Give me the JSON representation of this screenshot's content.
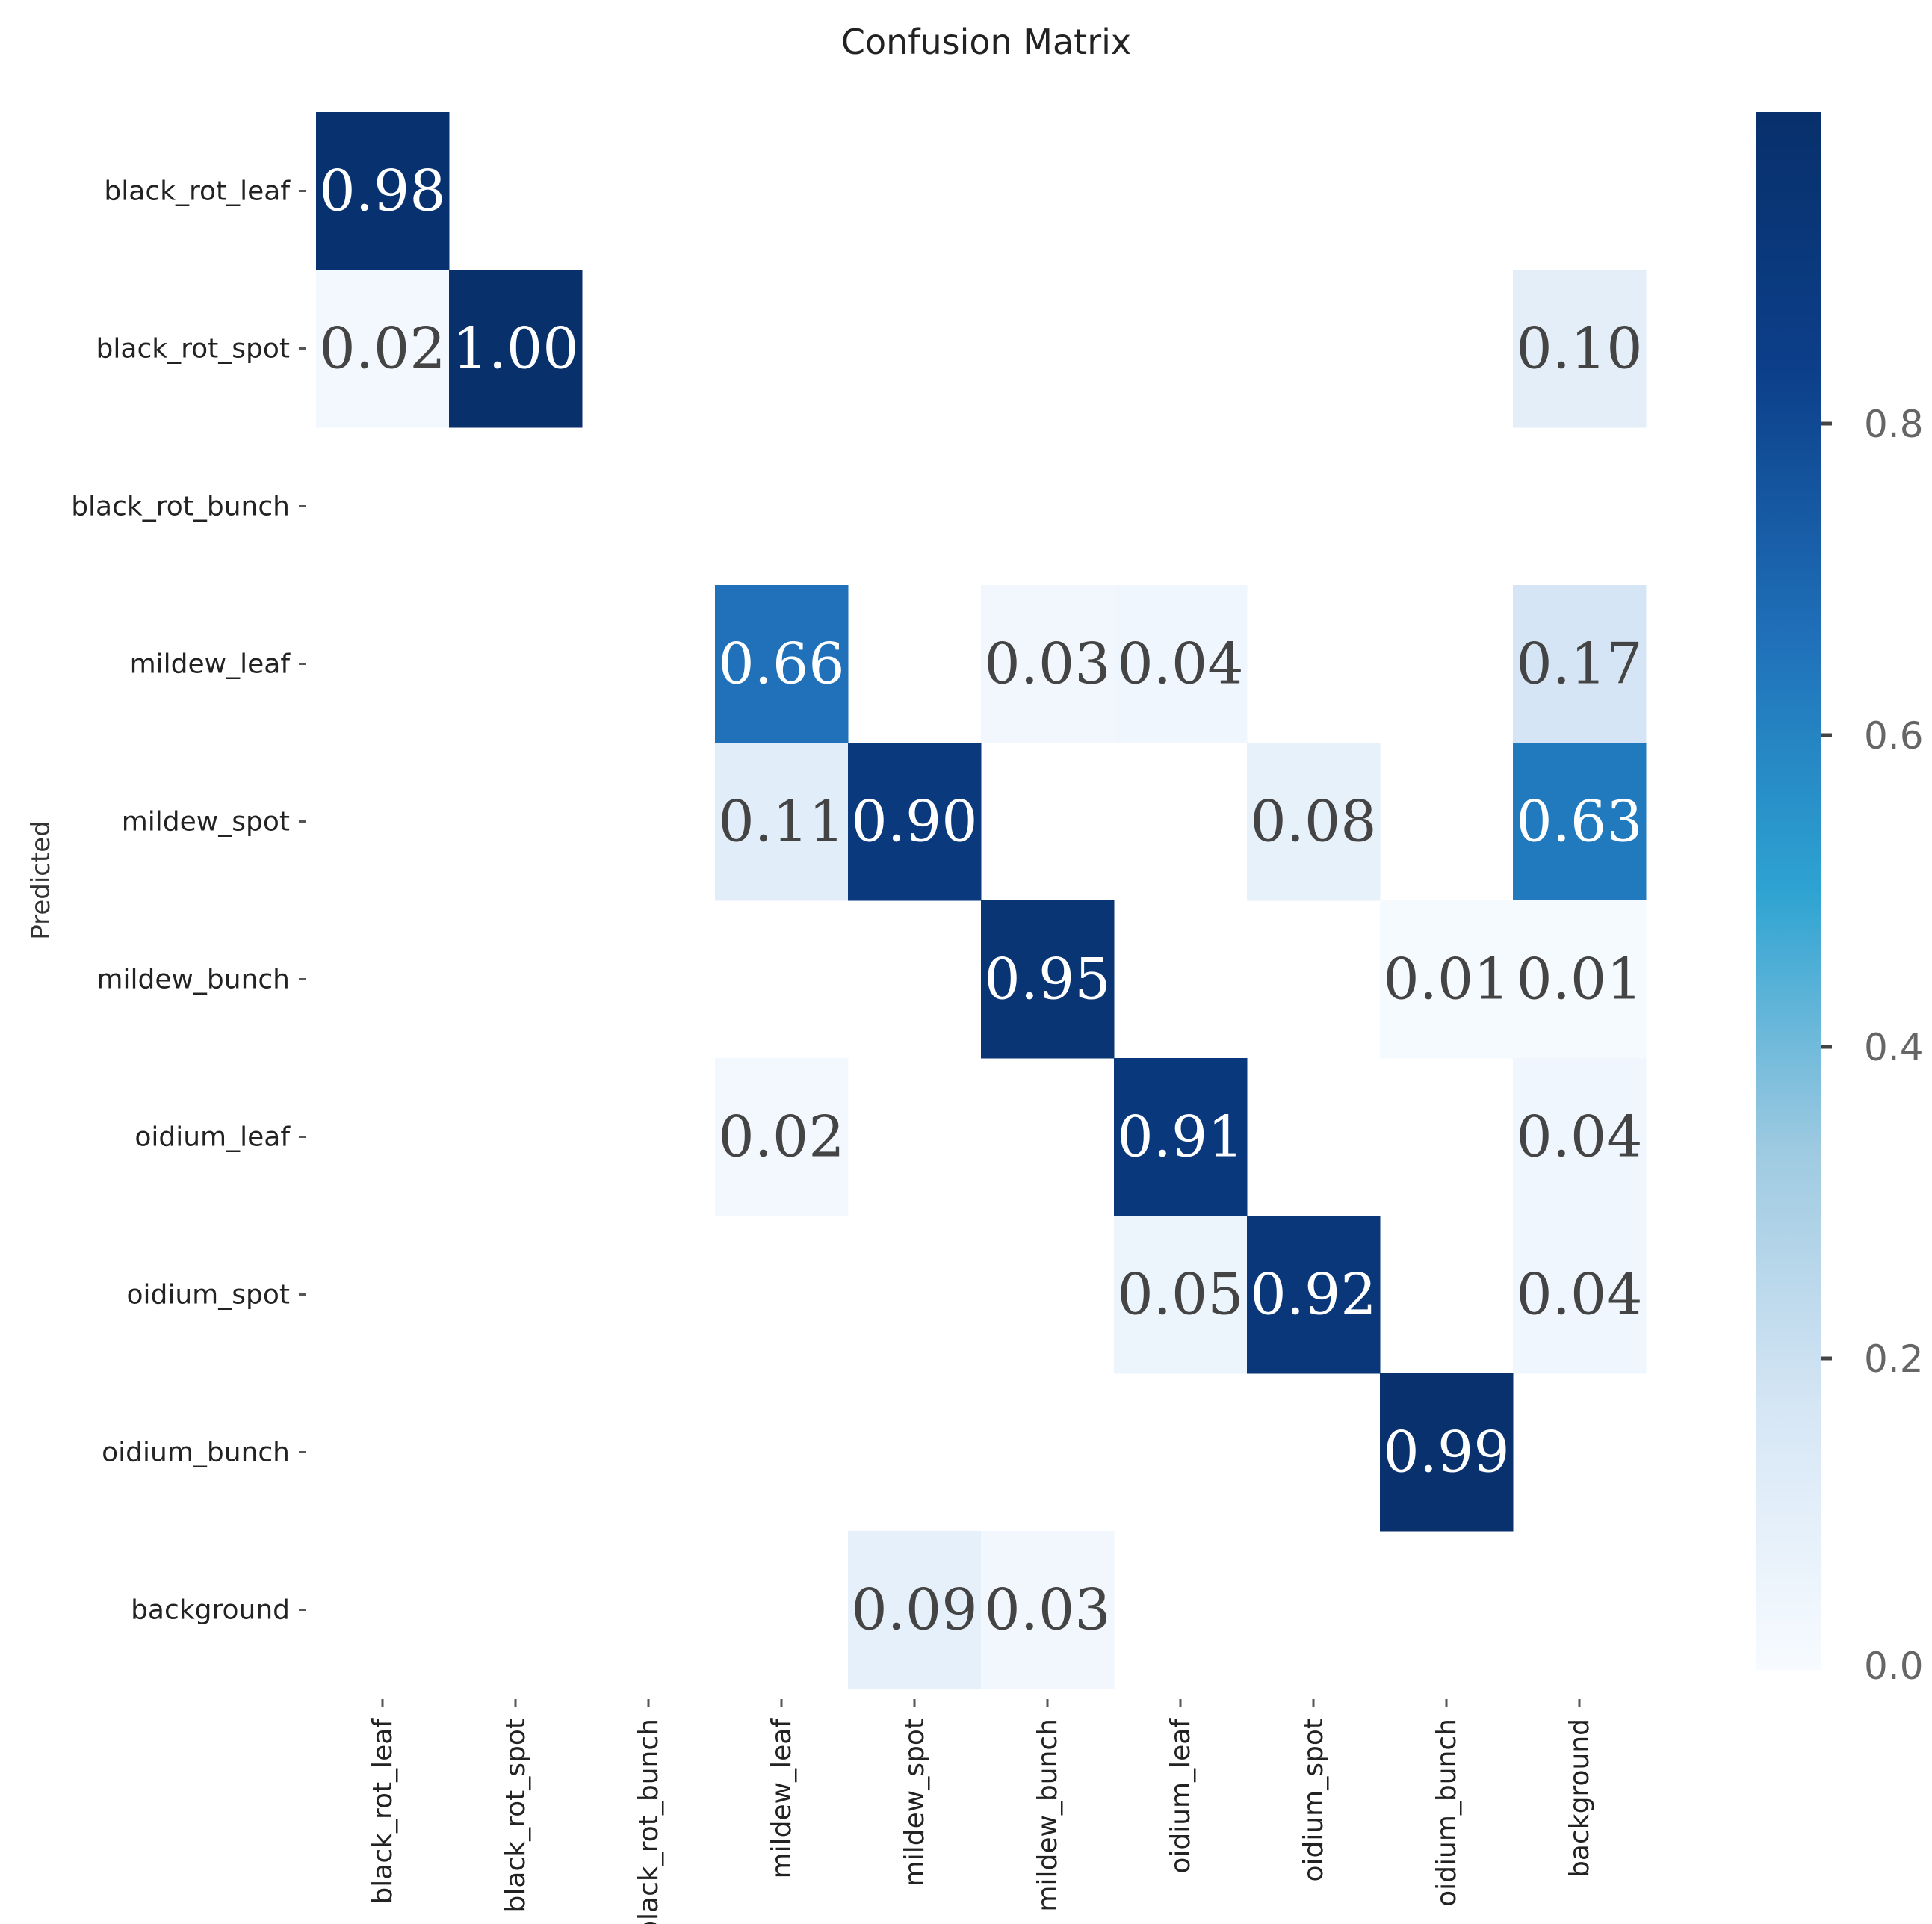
{
  "chart_data": {
    "type": "heatmap",
    "title": "Confusion Matrix",
    "ylabel": "Predicted",
    "xlabel": "",
    "row_labels": [
      "black_rot_leaf",
      "black_rot_spot",
      "black_rot_bunch",
      "mildew_leaf",
      "mildew_spot",
      "mildew_bunch",
      "oidium_leaf",
      "oidium_spot",
      "oidium_bunch",
      "background"
    ],
    "col_labels": [
      "black_rot_leaf",
      "black_rot_spot",
      "black_rot_bunch",
      "mildew_leaf",
      "mildew_spot",
      "mildew_bunch",
      "oidium_leaf",
      "oidium_spot",
      "oidium_bunch",
      "background"
    ],
    "values": [
      [
        0.98,
        null,
        null,
        null,
        null,
        null,
        null,
        null,
        null,
        null
      ],
      [
        0.02,
        1.0,
        null,
        null,
        null,
        null,
        null,
        null,
        null,
        0.1
      ],
      [
        null,
        null,
        null,
        null,
        null,
        null,
        null,
        null,
        null,
        null
      ],
      [
        null,
        null,
        null,
        0.66,
        null,
        0.03,
        0.04,
        null,
        null,
        0.17
      ],
      [
        null,
        null,
        null,
        0.11,
        0.9,
        null,
        null,
        0.08,
        null,
        0.63
      ],
      [
        null,
        null,
        null,
        null,
        null,
        0.95,
        null,
        null,
        0.01,
        0.01
      ],
      [
        null,
        null,
        null,
        0.02,
        null,
        null,
        0.91,
        null,
        null,
        0.04
      ],
      [
        null,
        null,
        null,
        null,
        null,
        null,
        0.05,
        0.92,
        null,
        0.04
      ],
      [
        null,
        null,
        null,
        null,
        null,
        null,
        null,
        null,
        0.99,
        null
      ],
      [
        null,
        null,
        null,
        null,
        0.09,
        0.03,
        null,
        null,
        null,
        null
      ]
    ],
    "value_labels": [
      [
        "0.98",
        "",
        "",
        "",
        "",
        "",
        "",
        "",
        "",
        ""
      ],
      [
        "0.02",
        "1.00",
        "",
        "",
        "",
        "",
        "",
        "",
        "",
        "0.10"
      ],
      [
        "",
        "",
        "",
        "",
        "",
        "",
        "",
        "",
        "",
        ""
      ],
      [
        "",
        "",
        "",
        "0.66",
        "",
        "0.03",
        "0.04",
        "",
        "",
        "0.17"
      ],
      [
        "",
        "",
        "",
        "0.11",
        "0.90",
        "",
        "",
        "0.08",
        "",
        "0.63"
      ],
      [
        "",
        "",
        "",
        "",
        "",
        "0.95",
        "",
        "",
        "0.01",
        "0.01"
      ],
      [
        "",
        "",
        "",
        "0.02",
        "",
        "",
        "0.91",
        "",
        "",
        "0.04"
      ],
      [
        "",
        "",
        "",
        "",
        "",
        "",
        "0.05",
        "0.92",
        "",
        "0.04"
      ],
      [
        "",
        "",
        "",
        "",
        "",
        "",
        "",
        "",
        "0.99",
        ""
      ],
      [
        "",
        "",
        "",
        "",
        "0.09",
        "0.03",
        "",
        "",
        "",
        ""
      ]
    ],
    "colormap": "Blues",
    "colorbar": {
      "range": [
        0.0,
        1.0
      ],
      "ticks": [
        0.0,
        0.2,
        0.4,
        0.6,
        0.8
      ],
      "tick_labels": [
        "0.0",
        "0.2",
        "0.4",
        "0.6",
        "0.8"
      ]
    },
    "grid": false
  },
  "colors": {
    "background": "#ffffff",
    "text": "#222222",
    "light_cell_text": "#444444",
    "dark_cell_text": "#ffffff",
    "colormap_stops": [
      "#f7fbff",
      "#d6e6f5",
      "#9ecae1",
      "#2ea3d2",
      "#1f6fb8",
      "#0c3f8a",
      "#08306b"
    ]
  }
}
